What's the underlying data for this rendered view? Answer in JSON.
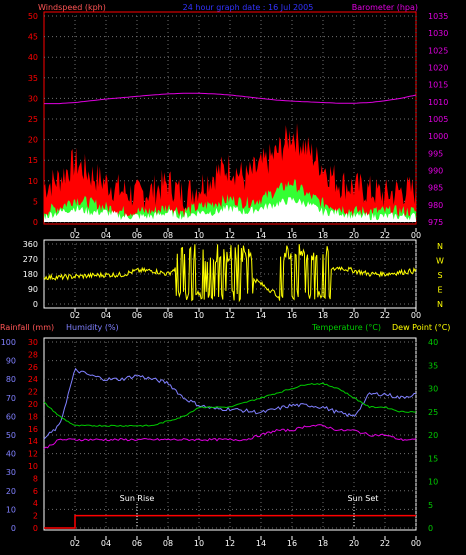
{
  "colors": {
    "red": "#ff0000",
    "pink": "#ff5555",
    "magenta": "#e000e0",
    "blue": "#3333ff",
    "lightblue": "#8080ff",
    "green": "#00cc00",
    "limegreen": "#33ff33",
    "yellow": "#ffff00",
    "white": "#ffffff",
    "grey": "#707070"
  },
  "header": {
    "left_title": "Windspeed (kph)",
    "center_title": "24 hour graph date : 16 Jul 2005",
    "right_title": "Barometer (hpa)"
  },
  "panel3_header": {
    "rain_label": "Rainfall (mm)",
    "humidity_label": "Humidity (%)",
    "temp_label": "Temperature (°C)",
    "dew_label": "Dew Point (°C)"
  },
  "annotations": {
    "sunrise": "Sun Rise",
    "sunset": "Sun Set"
  },
  "compass_letters": [
    "N",
    "W",
    "S",
    "E",
    "N"
  ],
  "chart_data": [
    {
      "type": "area",
      "panel": "wind_barometer",
      "title": "24 hour graph date : 16 Jul 2005",
      "ylabel_left": "Windspeed (kph)",
      "ylabel_right": "Barometer (hpa)",
      "ylim_left": [
        0,
        50
      ],
      "yticks_left": [
        "0",
        "5",
        "10",
        "15",
        "20",
        "25",
        "30",
        "35",
        "40",
        "45",
        "50"
      ],
      "ylim_right": [
        975,
        1035
      ],
      "yticks_right": [
        "975",
        "980",
        "985",
        "990",
        "995",
        "1000",
        "1005",
        "1010",
        "1015",
        "1020",
        "1025",
        "1030",
        "1035"
      ],
      "x_hours": [
        0,
        1,
        2,
        3,
        4,
        5,
        6,
        7,
        8,
        9,
        10,
        11,
        12,
        13,
        14,
        15,
        16,
        17,
        18,
        19,
        20,
        21,
        22,
        23,
        24
      ],
      "xticks": [
        "02",
        "04",
        "06",
        "08",
        "10",
        "12",
        "14",
        "16",
        "18",
        "20",
        "22",
        "00"
      ],
      "grid": true,
      "series": [
        {
          "key": "gust",
          "values": [
            7,
            9,
            13,
            10,
            8,
            6,
            5,
            6,
            8,
            5,
            7,
            10,
            12,
            9,
            12,
            15,
            20,
            16,
            12,
            8,
            7,
            6,
            5,
            6,
            6
          ],
          "color": "#ff0000"
        },
        {
          "key": "avg",
          "values": [
            2,
            3,
            5,
            4,
            3,
            2,
            2,
            2,
            3,
            2,
            3,
            4,
            5,
            4,
            5,
            7,
            9,
            6,
            4,
            3,
            2,
            2,
            2,
            2,
            2
          ],
          "color": "#33ff33"
        },
        {
          "key": "min",
          "values": [
            1,
            2,
            3,
            2,
            2,
            1,
            1,
            1,
            2,
            1,
            2,
            2,
            3,
            2,
            3,
            4,
            5,
            4,
            2,
            2,
            1,
            1,
            1,
            1,
            1
          ],
          "color": "#ffffff"
        },
        {
          "key": "baro",
          "values": [
            1009.5,
            1009.5,
            1009.8,
            1010.3,
            1010.8,
            1011.2,
            1011.6,
            1012.0,
            1012.3,
            1012.5,
            1012.5,
            1012.3,
            1012.0,
            1011.5,
            1011.0,
            1010.5,
            1010.2,
            1010.0,
            1009.8,
            1009.6,
            1009.6,
            1009.8,
            1010.3,
            1011.0,
            1012.0
          ],
          "color": "#e000e0"
        }
      ]
    },
    {
      "type": "line",
      "panel": "wind_direction",
      "ylim": [
        0,
        360
      ],
      "yticks": [
        "0",
        "90",
        "180",
        "270",
        "360"
      ],
      "x_hours": [
        0,
        1,
        2,
        3,
        4,
        5,
        6,
        7,
        8,
        9,
        10,
        11,
        12,
        13,
        14,
        15,
        16,
        17,
        18,
        19,
        20,
        21,
        22,
        23,
        24
      ],
      "xticks": [
        "02",
        "04",
        "06",
        "08",
        "10",
        "12",
        "14",
        "16",
        "18",
        "20",
        "22",
        "00"
      ],
      "grid": true,
      "series": [
        {
          "key": "direction",
          "values": [
            160,
            160,
            165,
            170,
            175,
            175,
            200,
            200,
            180,
            250,
            200,
            180,
            220,
            190,
            120,
            60,
            30,
            60,
            180,
            220,
            200,
            180,
            180,
            190,
            200
          ],
          "color": "#ffff00"
        }
      ]
    },
    {
      "type": "line",
      "panel": "rain_humidity_temp",
      "ylim_rain": [
        0,
        30
      ],
      "yticks_rain": [
        "0",
        "2",
        "4",
        "6",
        "8",
        "10",
        "12",
        "14",
        "16",
        "18",
        "20",
        "22",
        "24",
        "26",
        "28",
        "30"
      ],
      "ylim_humidity": [
        0,
        100
      ],
      "yticks_humidity": [
        "0",
        "10",
        "20",
        "30",
        "40",
        "50",
        "60",
        "70",
        "80",
        "90",
        "100"
      ],
      "ylim_temp": [
        0,
        40
      ],
      "yticks_temp": [
        "0",
        "5",
        "10",
        "15",
        "20",
        "25",
        "30",
        "35",
        "40"
      ],
      "x_hours": [
        0,
        1,
        2,
        3,
        4,
        5,
        6,
        7,
        8,
        9,
        10,
        11,
        12,
        13,
        14,
        15,
        16,
        17,
        18,
        19,
        20,
        21,
        22,
        23,
        24
      ],
      "xticks": [
        "02",
        "04",
        "06",
        "08",
        "10",
        "12",
        "14",
        "16",
        "18",
        "20",
        "22",
        "00"
      ],
      "grid": true,
      "series": [
        {
          "key": "humidity",
          "values": [
            48,
            55,
            85,
            82,
            80,
            80,
            82,
            80,
            78,
            70,
            66,
            64,
            64,
            63,
            62,
            64,
            66,
            66,
            65,
            62,
            60,
            72,
            72,
            70,
            72
          ],
          "color": "#8080ff"
        },
        {
          "key": "temperature",
          "values": [
            27,
            24,
            22,
            22,
            22,
            22,
            22,
            22,
            23,
            24,
            26,
            26,
            26,
            27,
            28,
            29,
            30,
            31,
            31,
            30,
            28,
            26,
            26,
            25,
            25
          ],
          "color": "#00cc00"
        },
        {
          "key": "dewpoint",
          "values": [
            17,
            19,
            19,
            19,
            19,
            19,
            19,
            19,
            19,
            19,
            19,
            19,
            19,
            19,
            20,
            21,
            21,
            22,
            22,
            21,
            21,
            20,
            20,
            19,
            19
          ],
          "color": "#e000e0"
        },
        {
          "key": "rainfall",
          "values": [
            0,
            0,
            2,
            2,
            2,
            2,
            2,
            2,
            2,
            2,
            2,
            2,
            2,
            2,
            2,
            2,
            2,
            2,
            2,
            2,
            2,
            2,
            2,
            2,
            2
          ],
          "color": "#ff0000"
        }
      ]
    }
  ]
}
